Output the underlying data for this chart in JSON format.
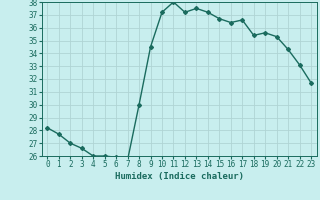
{
  "x": [
    0,
    1,
    2,
    3,
    4,
    5,
    6,
    7,
    8,
    9,
    10,
    11,
    12,
    13,
    14,
    15,
    16,
    17,
    18,
    19,
    20,
    21,
    22,
    23
  ],
  "y": [
    28.2,
    27.7,
    27.0,
    26.6,
    26.0,
    26.0,
    25.9,
    25.7,
    30.0,
    34.5,
    37.2,
    38.0,
    37.2,
    37.5,
    37.2,
    36.7,
    36.4,
    36.6,
    35.4,
    35.6,
    35.3,
    34.3,
    33.1,
    31.7
  ],
  "line_color": "#1a6b5e",
  "bg_color": "#c8eeee",
  "grid_color": "#b0d4d4",
  "xlabel": "Humidex (Indice chaleur)",
  "ylim": [
    26,
    38
  ],
  "xlim_min": -0.5,
  "xlim_max": 23.5,
  "yticks": [
    26,
    27,
    28,
    29,
    30,
    31,
    32,
    33,
    34,
    35,
    36,
    37,
    38
  ],
  "xticks": [
    0,
    1,
    2,
    3,
    4,
    5,
    6,
    7,
    8,
    9,
    10,
    11,
    12,
    13,
    14,
    15,
    16,
    17,
    18,
    19,
    20,
    21,
    22,
    23
  ],
  "marker": "D",
  "marker_size": 2.0,
  "line_width": 1.0,
  "xlabel_fontsize": 6.5,
  "tick_fontsize": 5.5
}
